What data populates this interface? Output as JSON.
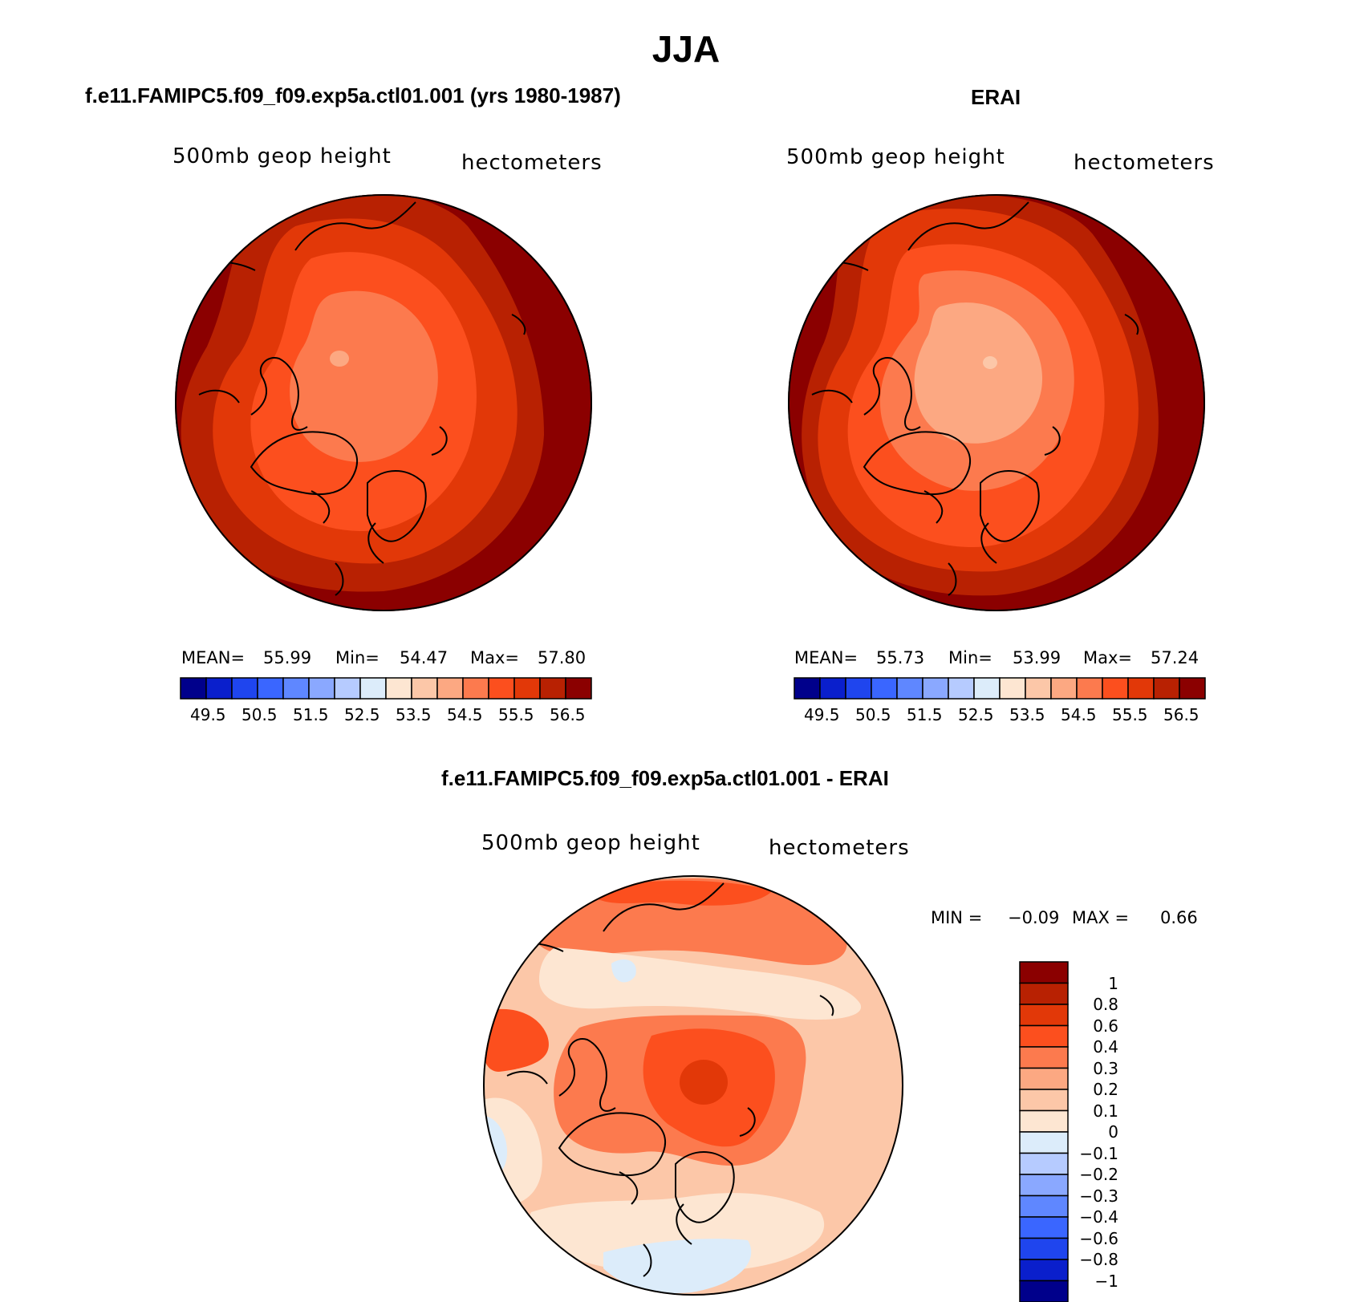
{
  "figure": {
    "season": "JJA",
    "units": "hectometers",
    "variable": "500mb geop height"
  },
  "panels": [
    {
      "title": "f.e11.FAMIPC5.f09_f09.exp5a.ctl01.001 (yrs 1980-1987)",
      "variable": "500mb geop height",
      "units": "hectometers",
      "stats": {
        "mean_label": "MEAN=",
        "mean": "55.99",
        "min_label": "Min=",
        "min": "54.47",
        "max_label": "Max=",
        "max": "57.80"
      }
    },
    {
      "title": "ERAI",
      "variable": "500mb geop height",
      "units": "hectometers",
      "stats": {
        "mean_label": "MEAN=",
        "mean": "55.73",
        "min_label": "Min=",
        "min": "53.99",
        "max_label": "Max=",
        "max": "57.24"
      }
    },
    {
      "title": "f.e11.FAMIPC5.f09_f09.exp5a.ctl01.001 - ERAI",
      "variable": "500mb geop height",
      "units": "hectometers",
      "stats": {
        "min_label": "MIN =",
        "min": "−0.09",
        "max_label": "MAX =",
        "max": "0.66"
      }
    }
  ],
  "colorbars": {
    "horizontal": {
      "colors": [
        "#00008b",
        "#0a1fcc",
        "#1f45ee",
        "#3a66ff",
        "#5f87ff",
        "#8aa8ff",
        "#b6cbff",
        "#dcecfa",
        "#fde6d2",
        "#fcc7a8",
        "#fca882",
        "#fc7a4e",
        "#fc4f1e",
        "#e23808",
        "#b82102",
        "#8b0000"
      ],
      "tick_labels": [
        "49.5",
        "50.5",
        "51.5",
        "52.5",
        "53.5",
        "54.5",
        "55.5",
        "56.5"
      ]
    },
    "vertical": {
      "colors_top_to_bottom": [
        "#8b0000",
        "#b82102",
        "#e23808",
        "#fc4f1e",
        "#fc7a4e",
        "#fca882",
        "#fcc7a8",
        "#fde6d2",
        "#dcecfa",
        "#b6cbff",
        "#8aa8ff",
        "#5f87ff",
        "#3a66ff",
        "#1f45ee",
        "#0a1fcc",
        "#00008b"
      ],
      "tick_labels": [
        "1",
        "0.8",
        "0.6",
        "0.4",
        "0.3",
        "0.2",
        "0.1",
        "0",
        "−0.1",
        "−0.2",
        "−0.3",
        "−0.4",
        "−0.6",
        "−0.8",
        "−1"
      ]
    }
  }
}
